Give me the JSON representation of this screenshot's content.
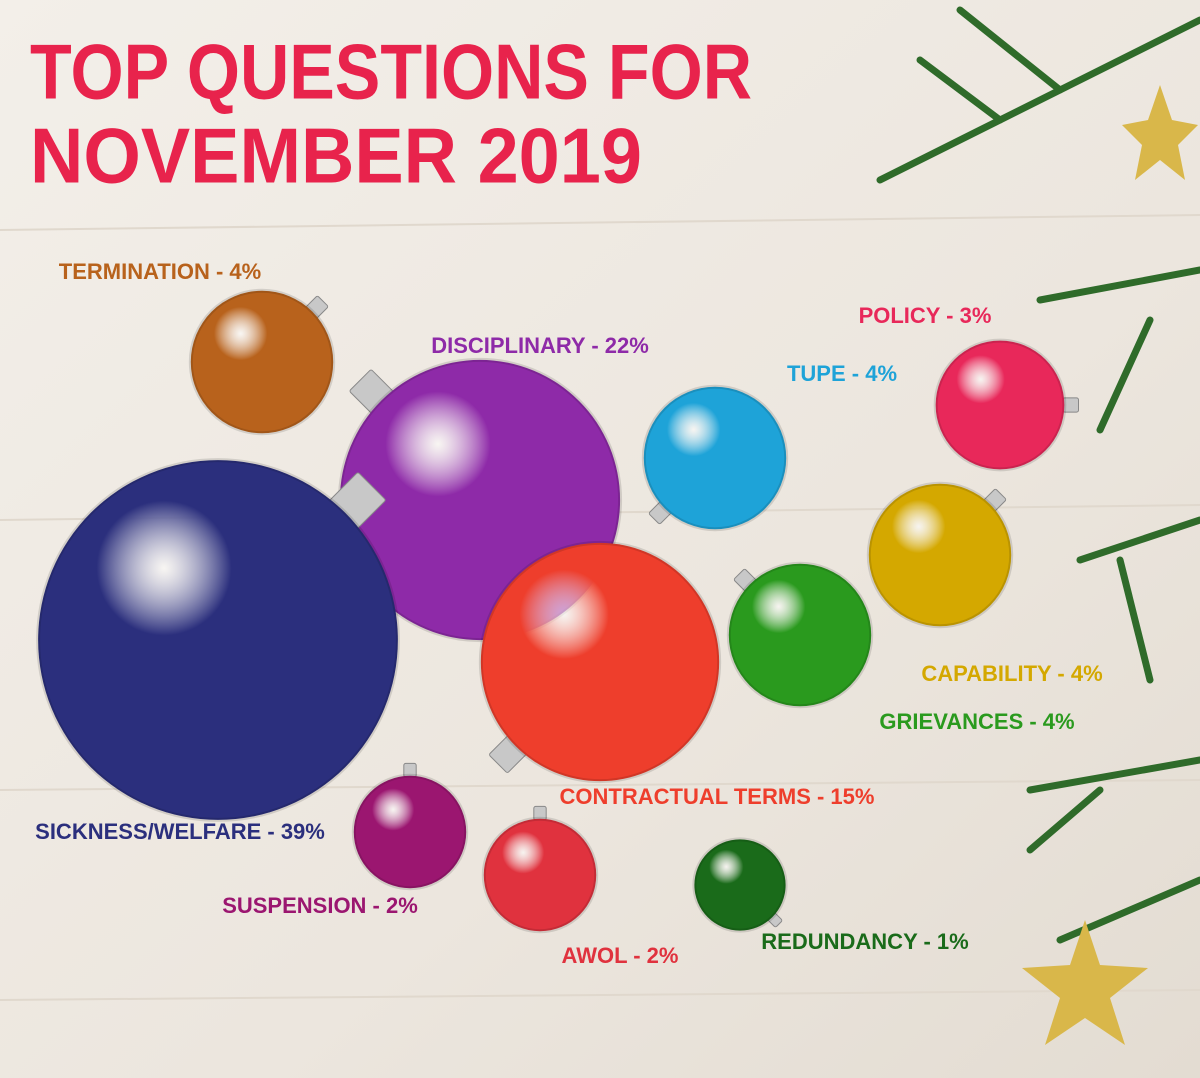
{
  "chart_data": {
    "type": "bubble",
    "title_lines": [
      "TOP QUESTIONS FOR",
      "NOVEMBER 2019"
    ],
    "values": [
      4,
      22,
      4,
      3,
      39,
      4,
      4,
      15,
      2,
      2,
      1
    ],
    "value_labels": [
      "TERMINATION - 4%",
      "DISCIPLINARY - 22%",
      "TUPE - 4%",
      "POLICY - 3%",
      "SICKNESS/WELFARE - 39%",
      "CAPABILITY - 4%",
      "GRIEVANCES - 4%",
      "CONTRACTUAL TERMS - 15%",
      "SUSPENSION - 2%",
      "AWOL - 2%",
      "REDUNDANCY - 1%"
    ],
    "colors": [
      "#b8621c",
      "#8e2aa8",
      "#1ea3d8",
      "#e8285a",
      "#2b2f7d",
      "#d4a800",
      "#2a9a1e",
      "#ee3e2c",
      "#9b1670",
      "#e0323e",
      "#1a6b1a"
    ]
  }
}
